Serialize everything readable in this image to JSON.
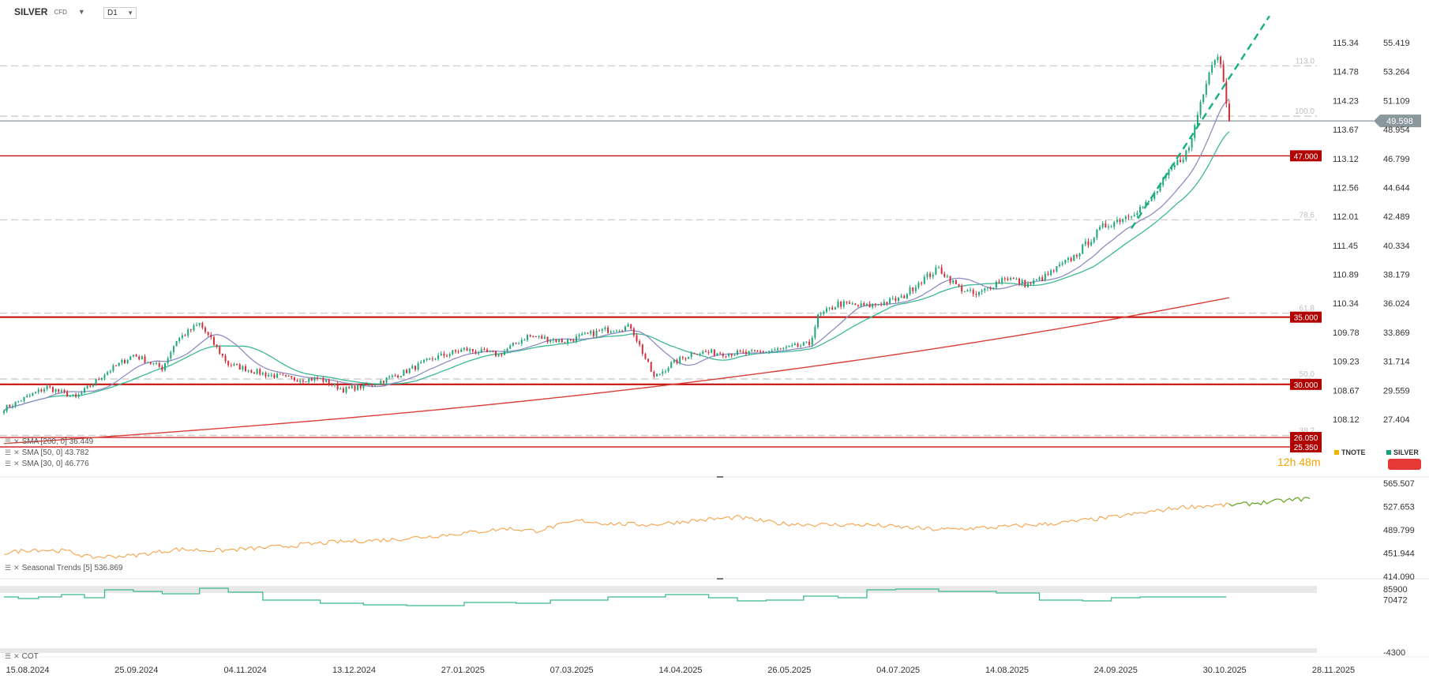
{
  "header": {
    "symbol": "SILVER",
    "symbol_type": "CFD",
    "timeframe": "D1"
  },
  "colors": {
    "up": "#1fa77a",
    "down": "#d32f3a",
    "sma200": "#d9403a",
    "sma50": "#3cb894",
    "sma30": "#8e8ec4",
    "level": "#c00000",
    "price": "#8a979d",
    "fib": "#cfcfcf",
    "trend": "#17b07a",
    "seasonal": "#f5a34a",
    "seasonal_recent": "#6aa82e",
    "cot": "#3cb894",
    "tnote": "#f0b400",
    "silver": "#19a07a"
  },
  "price_axis": {
    "labels": [
      "55.419",
      "53.264",
      "51.109",
      "48.954",
      "46.799",
      "44.644",
      "42.489",
      "40.334",
      "38.179",
      "36.024",
      "33.869",
      "31.714",
      "29.559",
      "27.404"
    ]
  },
  "tnote_axis": {
    "labels": [
      "115.34",
      "114.78",
      "114.23",
      "113.67",
      "113.12",
      "112.56",
      "112.01",
      "111.45",
      "110.89",
      "110.34",
      "109.78",
      "109.23",
      "108.67",
      "108.12"
    ]
  },
  "fib_levels": [
    {
      "label": "113.0",
      "price": 53.69
    },
    {
      "label": "100.0",
      "price": 49.95
    },
    {
      "label": "78.6",
      "price": 42.24
    },
    {
      "label": "61.8",
      "price": 35.3
    },
    {
      "label": "50.0",
      "price": 30.4
    },
    {
      "label": "38.2",
      "price": 26.2
    }
  ],
  "levels": [
    {
      "label": "47.000",
      "price": 47.0
    },
    {
      "label": "35.000",
      "price": 35.0
    },
    {
      "label": "30.000",
      "price": 30.0
    },
    {
      "label": "26.050",
      "price": 26.05
    },
    {
      "label": "25.350",
      "price": 25.35
    }
  ],
  "current_price": {
    "label": "49.598",
    "price": 49.598
  },
  "indicators": [
    {
      "label": "SMA [200, 0] 36.449",
      "value": 36.449
    },
    {
      "label": "SMA [50, 0] 43.782",
      "value": 43.782
    },
    {
      "label": "SMA [30, 0] 46.776",
      "value": 46.776
    }
  ],
  "seasonal": {
    "label": "Seasonal Trends [5] 536.869",
    "axis": [
      "565.507",
      "527.653",
      "489.799",
      "451.944",
      "414.090"
    ]
  },
  "cot": {
    "label": "COT",
    "axis": [
      "85900",
      "70472",
      "-4300"
    ]
  },
  "x_axis": [
    "15.08.2024",
    "25.09.2024",
    "04.11.2024",
    "13.12.2024",
    "27.01.2025",
    "07.03.2025",
    "14.04.2025",
    "26.05.2025",
    "04.07.2025",
    "14.08.2025",
    "24.09.2025",
    "30.10.2025",
    "28.11.2025"
  ],
  "countdown": "12h 48m",
  "legend": {
    "tnote": "TNOTE",
    "silver": "SILVER"
  },
  "chart_data": {
    "type": "candlestick",
    "title": "",
    "y_range": [
      25.0,
      57.5
    ],
    "control_points": [
      [
        0,
        28.2
      ],
      [
        15,
        29.8
      ],
      [
        25,
        29.0
      ],
      [
        35,
        30.8
      ],
      [
        45,
        32.2
      ],
      [
        55,
        31.2
      ],
      [
        60,
        33.3
      ],
      [
        68,
        34.5
      ],
      [
        78,
        31.5
      ],
      [
        90,
        30.8
      ],
      [
        100,
        30.4
      ],
      [
        110,
        30.4
      ],
      [
        118,
        29.6
      ],
      [
        128,
        30.0
      ],
      [
        138,
        30.8
      ],
      [
        150,
        32.0
      ],
      [
        160,
        32.6
      ],
      [
        172,
        32.2
      ],
      [
        182,
        33.6
      ],
      [
        195,
        33.2
      ],
      [
        208,
        34.0
      ],
      [
        218,
        34.3
      ],
      [
        226,
        30.5
      ],
      [
        232,
        31.5
      ],
      [
        240,
        32.4
      ],
      [
        258,
        32.3
      ],
      [
        270,
        32.6
      ],
      [
        280,
        33.0
      ],
      [
        283,
        35.0
      ],
      [
        290,
        36.0
      ],
      [
        300,
        35.8
      ],
      [
        312,
        36.4
      ],
      [
        318,
        37.6
      ],
      [
        325,
        38.6
      ],
      [
        332,
        37.2
      ],
      [
        338,
        36.6
      ],
      [
        348,
        38.0
      ],
      [
        356,
        37.4
      ],
      [
        362,
        38.0
      ],
      [
        372,
        39.5
      ],
      [
        382,
        41.7
      ],
      [
        390,
        42.5
      ],
      [
        398,
        43.5
      ],
      [
        406,
        46.0
      ],
      [
        412,
        47.5
      ],
      [
        416,
        51.0
      ],
      [
        419,
        53.5
      ],
      [
        422,
        54.6
      ],
      [
        424,
        52.8
      ],
      [
        426,
        49.6
      ]
    ],
    "sma200_range": [
      25.6,
      36.45
    ],
    "sma50_end": 43.782,
    "sma30_end": 46.776,
    "trendline": {
      "from": [
        392,
        41.6
      ],
      "to": [
        440,
        57.4
      ]
    }
  }
}
